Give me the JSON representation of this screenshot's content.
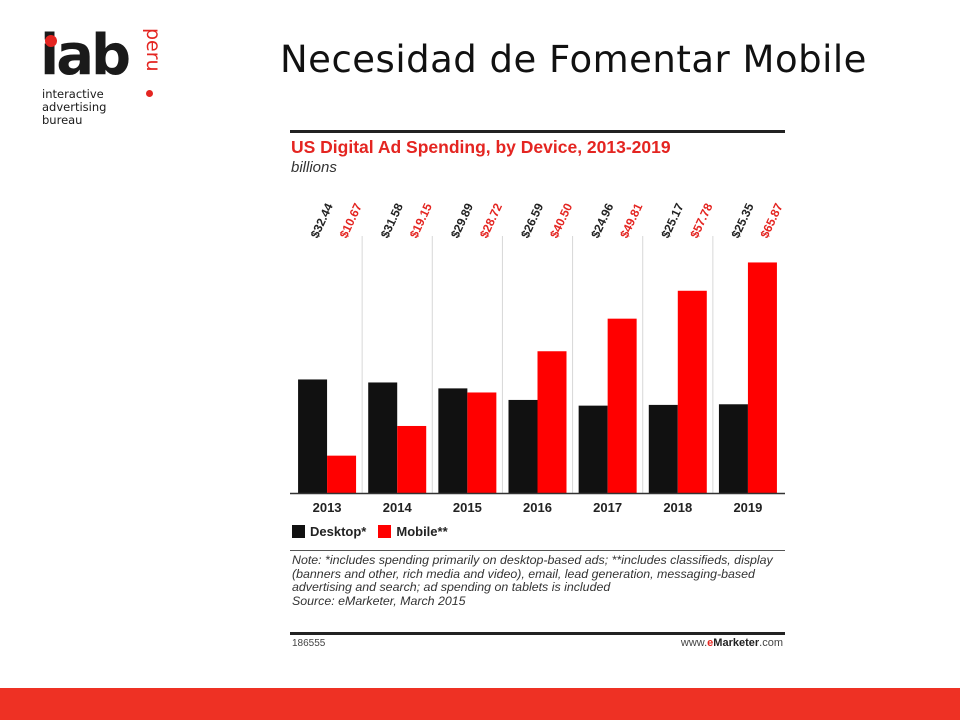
{
  "logo": {
    "main": "iab",
    "country": "peru",
    "tagline": [
      "interactive",
      "advertising",
      "bureau"
    ]
  },
  "slide": {
    "title": "Necesidad de Fomentar Mobile"
  },
  "chart_data": {
    "type": "bar",
    "title": "US Digital Ad Spending, by Device, 2013-2019",
    "subtitle": "billions",
    "categories": [
      "2013",
      "2014",
      "2015",
      "2016",
      "2017",
      "2018",
      "2019"
    ],
    "series": [
      {
        "name": "Desktop*",
        "color": "#111111",
        "values": [
          32.44,
          31.58,
          29.89,
          26.59,
          24.96,
          25.17,
          25.35
        ],
        "labels": [
          "$32.44",
          "$31.58",
          "$29.89",
          "$26.59",
          "$24.96",
          "$25.17",
          "$25.35"
        ]
      },
      {
        "name": "Mobile**",
        "color": "#ff0000",
        "values": [
          10.67,
          19.15,
          28.72,
          40.5,
          49.81,
          57.78,
          65.87
        ],
        "labels": [
          "$10.67",
          "$19.15",
          "$28.72",
          "$40.50",
          "$49.81",
          "$57.78",
          "$65.87"
        ]
      }
    ],
    "ylim": [
      0,
      70
    ],
    "grid": true,
    "legend_position": "bottom-left",
    "note": "Note: *includes spending primarily on desktop-based ads; **includes classifieds, display (banners and other, rich media and video), email, lead generation, messaging-based advertising and search; ad spending on tablets is included",
    "source": "Source: eMarketer, March 2015",
    "chart_id": "186555",
    "brand": {
      "prefix": "www.",
      "e": "e",
      "name": "Marketer",
      "suffix": ".com"
    }
  }
}
